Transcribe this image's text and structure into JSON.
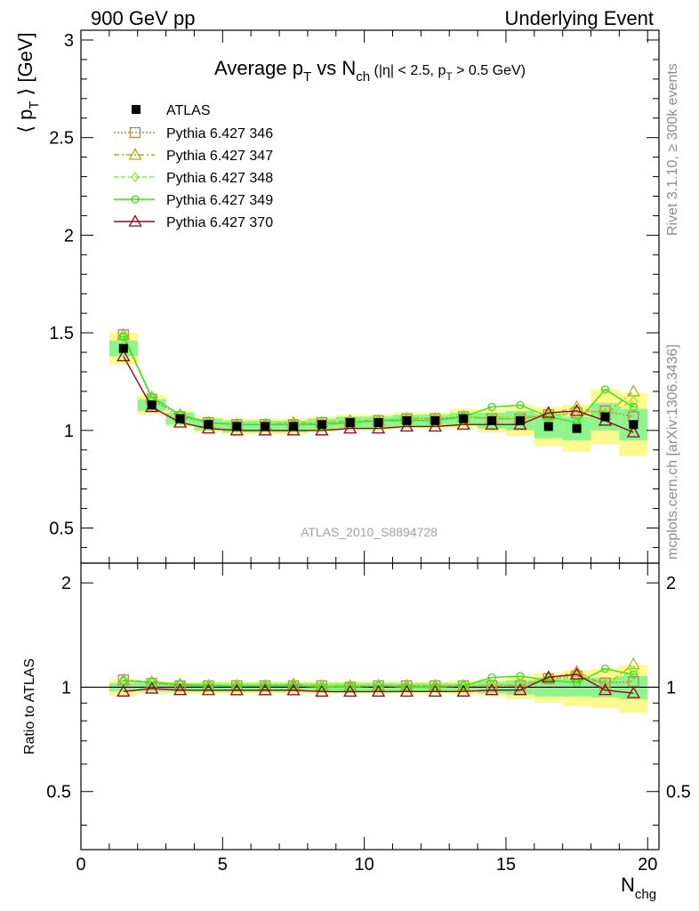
{
  "header": {
    "left": "900 GeV pp",
    "right": "Underlying Event"
  },
  "side": {
    "rivet": "Rivet 3.1.10, ≥ 300k events",
    "mcplots": "mcplots.cern.ch [arXiv:1306.3436]"
  },
  "chart_data": {
    "type": "scatter",
    "title": {
      "main": "Average p",
      "main_sub": "T",
      "vs": " vs N",
      "vs_sub": "ch",
      "cut_a": " (|η| < 2.5, p",
      "cut_sub": "T",
      "cut_b": " > 0.5 GeV)"
    },
    "analysis_label": "ATLAS_2010_S8894728",
    "ylabel": {
      "pre": "⟨ p",
      "sub": "T",
      "post": " ⟩ [GeV]"
    },
    "ratio_ylabel": "Ratio to ATLAS",
    "xlabel": {
      "main": "N",
      "sub": "chg"
    },
    "xlim": [
      0,
      20.4
    ],
    "ylim": [
      0.32,
      3.05
    ],
    "ratio_ylim": [
      0.34,
      2.28
    ],
    "xticks": [
      0,
      5,
      10,
      15,
      20
    ],
    "yticks": [
      0.5,
      1,
      1.5,
      2,
      2.5,
      3
    ],
    "yticklabels": [
      "0.5",
      "1",
      "1.5",
      "2",
      "2.5",
      "3"
    ],
    "ratio_yticks": [
      0.5,
      1,
      2
    ],
    "ratio_yticklabels": [
      "0.5",
      "1",
      "2"
    ],
    "x": [
      1.5,
      2.5,
      3.5,
      4.5,
      5.5,
      6.5,
      7.5,
      8.5,
      9.5,
      10.5,
      11.5,
      12.5,
      13.5,
      14.5,
      15.5,
      16.5,
      17.5,
      18.5,
      19.5
    ],
    "data": {
      "name": "ATLAS",
      "values": [
        1.42,
        1.13,
        1.06,
        1.03,
        1.02,
        1.02,
        1.02,
        1.03,
        1.04,
        1.04,
        1.05,
        1.05,
        1.06,
        1.05,
        1.05,
        1.02,
        1.01,
        1.07,
        1.03
      ],
      "band_inner": [
        0.04,
        0.03,
        0.03,
        0.03,
        0.03,
        0.03,
        0.03,
        0.03,
        0.03,
        0.03,
        0.03,
        0.03,
        0.03,
        0.04,
        0.05,
        0.06,
        0.06,
        0.07,
        0.08
      ],
      "band_outer": [
        0.08,
        0.05,
        0.04,
        0.04,
        0.04,
        0.04,
        0.04,
        0.04,
        0.04,
        0.04,
        0.04,
        0.04,
        0.05,
        0.06,
        0.08,
        0.1,
        0.12,
        0.14,
        0.16
      ]
    },
    "series": [
      {
        "name": "Pythia 6.427 346",
        "color": "#b8844c",
        "marker": "square",
        "dash": "2,2",
        "values": [
          1.49,
          1.16,
          1.07,
          1.04,
          1.03,
          1.03,
          1.03,
          1.04,
          1.04,
          1.05,
          1.06,
          1.06,
          1.07,
          1.06,
          1.06,
          1.08,
          1.09,
          1.1,
          1.07
        ]
      },
      {
        "name": "Pythia 6.427 347",
        "color": "#a6b41c",
        "marker": "triangle",
        "dash": "6,3,2,3",
        "values": [
          1.49,
          1.17,
          1.08,
          1.04,
          1.03,
          1.03,
          1.04,
          1.04,
          1.05,
          1.05,
          1.06,
          1.06,
          1.07,
          1.06,
          1.06,
          1.08,
          1.12,
          1.08,
          1.2
        ]
      },
      {
        "name": "Pythia 6.427 348",
        "color": "#8ee83c",
        "marker": "diamond",
        "dash": "5,3",
        "values": [
          1.48,
          1.17,
          1.08,
          1.04,
          1.03,
          1.03,
          1.03,
          1.04,
          1.04,
          1.05,
          1.05,
          1.05,
          1.07,
          1.07,
          1.07,
          1.08,
          1.08,
          1.08,
          1.15
        ]
      },
      {
        "name": "Pythia 6.427 349",
        "color": "#3ee01c",
        "marker": "circle",
        "dash": "",
        "values": [
          1.48,
          1.17,
          1.08,
          1.04,
          1.03,
          1.03,
          1.03,
          1.03,
          1.04,
          1.05,
          1.05,
          1.05,
          1.07,
          1.12,
          1.13,
          1.07,
          1.04,
          1.21,
          1.12
        ]
      },
      {
        "name": "Pythia 6.427 370",
        "color": "#8c0a1e",
        "marker": "triangle",
        "dash": "",
        "values": [
          1.38,
          1.12,
          1.04,
          1.01,
          1.0,
          1.0,
          1.0,
          1.0,
          1.01,
          1.01,
          1.02,
          1.02,
          1.03,
          1.03,
          1.03,
          1.09,
          1.1,
          1.05,
          0.99
        ]
      }
    ]
  }
}
